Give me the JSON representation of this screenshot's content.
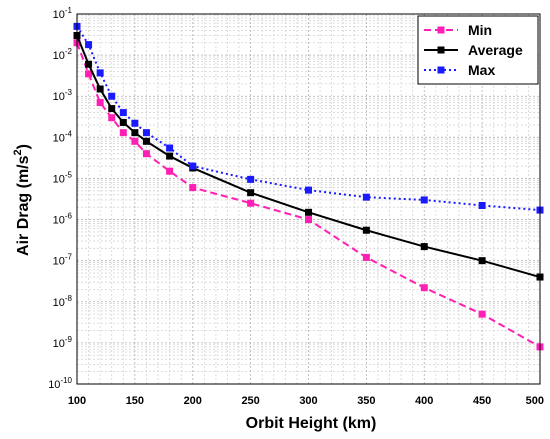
{
  "chart_data": {
    "type": "line",
    "xlabel": "Orbit Height   (km)",
    "ylabel": "Air Drag  (m/s",
    "ylabel_sup": "2",
    "ylabel_close": ")",
    "xlim": [
      100,
      500
    ],
    "ylim": [
      1e-10,
      0.1
    ],
    "yscale": "log",
    "grid": true,
    "legend_position": "top-right",
    "x_ticks": [
      100,
      150,
      200,
      250,
      300,
      350,
      400,
      450,
      500
    ],
    "y_tick_labels": [
      {
        "base": "10",
        "exp": "-1"
      },
      {
        "base": "10",
        "exp": "-2"
      },
      {
        "base": "10",
        "exp": "-3"
      },
      {
        "base": "10",
        "exp": "-4"
      },
      {
        "base": "10",
        "exp": "-5"
      },
      {
        "base": "10",
        "exp": "-6"
      },
      {
        "base": "10",
        "exp": "-7"
      },
      {
        "base": "10",
        "exp": "-8"
      },
      {
        "base": "10",
        "exp": "-9"
      },
      {
        "base": "10",
        "exp": "-10"
      }
    ],
    "series": [
      {
        "name": "Min",
        "color": "#ff1fb4",
        "dash": "dashed",
        "x": [
          100,
          110,
          120,
          130,
          140,
          150,
          160,
          180,
          200,
          250,
          300,
          350,
          400,
          450,
          500
        ],
        "y": [
          0.02,
          0.0035,
          0.0007,
          0.0003,
          0.00013,
          8e-05,
          4e-05,
          1.5e-05,
          6e-06,
          2.5e-06,
          1e-06,
          1.2e-07,
          2.2e-08,
          5e-09,
          8e-10
        ]
      },
      {
        "name": "Average",
        "color": "#000000",
        "dash": "solid",
        "x": [
          100,
          110,
          120,
          130,
          140,
          150,
          160,
          180,
          200,
          250,
          300,
          350,
          400,
          450,
          500
        ],
        "y": [
          0.03,
          0.006,
          0.0015,
          0.0005,
          0.00023,
          0.00013,
          8e-05,
          3.5e-05,
          1.8e-05,
          4.5e-06,
          1.5e-06,
          5.5e-07,
          2.2e-07,
          1e-07,
          4e-08
        ]
      },
      {
        "name": "Max",
        "color": "#1a1aff",
        "dash": "dotted",
        "x": [
          100,
          110,
          120,
          130,
          140,
          150,
          160,
          180,
          200,
          250,
          300,
          350,
          400,
          450,
          500
        ],
        "y": [
          0.05,
          0.018,
          0.0037,
          0.001,
          0.0004,
          0.00022,
          0.00013,
          5.5e-05,
          2e-05,
          9.5e-06,
          5.2e-06,
          3.5e-06,
          3e-06,
          2.2e-06,
          1.7e-06
        ]
      }
    ]
  }
}
